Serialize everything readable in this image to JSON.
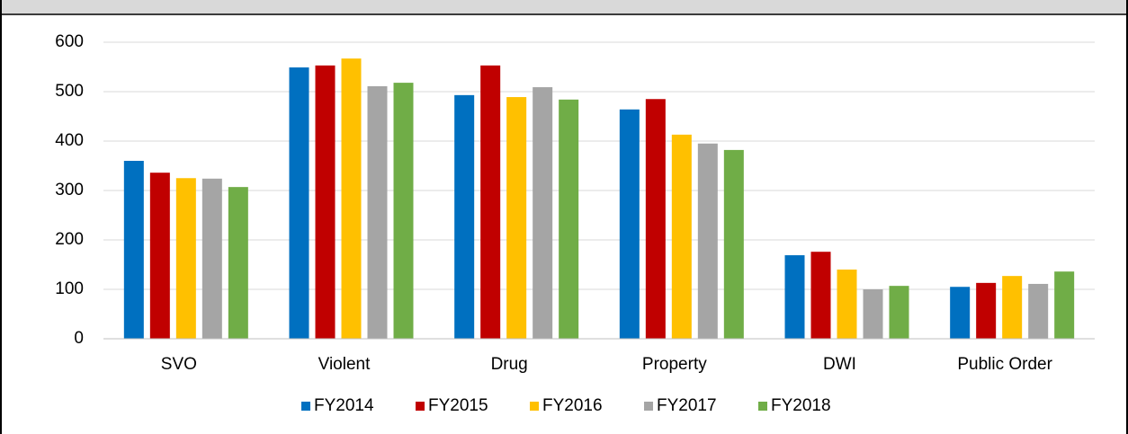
{
  "chart_data": {
    "type": "bar",
    "categories": [
      "SVO",
      "Violent",
      "Drug",
      "Property",
      "DWI",
      "Public Order"
    ],
    "series": [
      {
        "name": "FY2014",
        "color": "#0070c0",
        "values": [
          360,
          549,
          493,
          464,
          169,
          105
        ]
      },
      {
        "name": "FY2015",
        "color": "#c00000",
        "values": [
          336,
          553,
          553,
          485,
          176,
          113
        ]
      },
      {
        "name": "FY2016",
        "color": "#ffc000",
        "values": [
          325,
          567,
          489,
          413,
          140,
          127
        ]
      },
      {
        "name": "FY2017",
        "color": "#a5a5a5",
        "values": [
          324,
          511,
          509,
          395,
          100,
          111
        ]
      },
      {
        "name": "FY2018",
        "color": "#70ad47",
        "values": [
          307,
          518,
          484,
          382,
          107,
          136
        ]
      }
    ],
    "ylim": [
      0,
      600
    ],
    "yticks": [
      0,
      100,
      200,
      300,
      400,
      500,
      600
    ],
    "grid": true,
    "legend": "bottom"
  }
}
